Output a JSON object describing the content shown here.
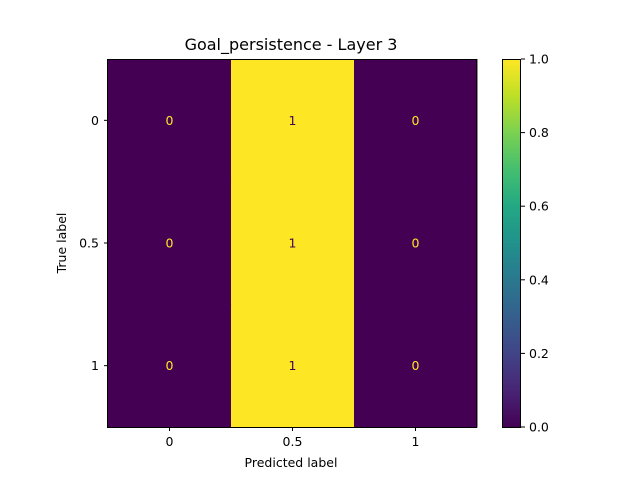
{
  "chart_data": {
    "type": "heatmap",
    "title": "Goal_persistence - Layer 3",
    "xlabel": "Predicted label",
    "ylabel": "True label",
    "x_categories": [
      "0",
      "0.5",
      "1"
    ],
    "y_categories": [
      "0",
      "0.5",
      "1"
    ],
    "matrix": [
      [
        0,
        1,
        0
      ],
      [
        0,
        1,
        0
      ],
      [
        0,
        1,
        0
      ]
    ],
    "colorbar": {
      "colormap": "viridis",
      "range": [
        0.0,
        1.0
      ],
      "ticks": [
        "0.0",
        "0.2",
        "0.4",
        "0.6",
        "0.8",
        "1.0"
      ]
    },
    "colors": {
      "low": "#440154",
      "high": "#fde725",
      "text_on_low": "#fde725",
      "text_on_high": "#440154"
    }
  }
}
